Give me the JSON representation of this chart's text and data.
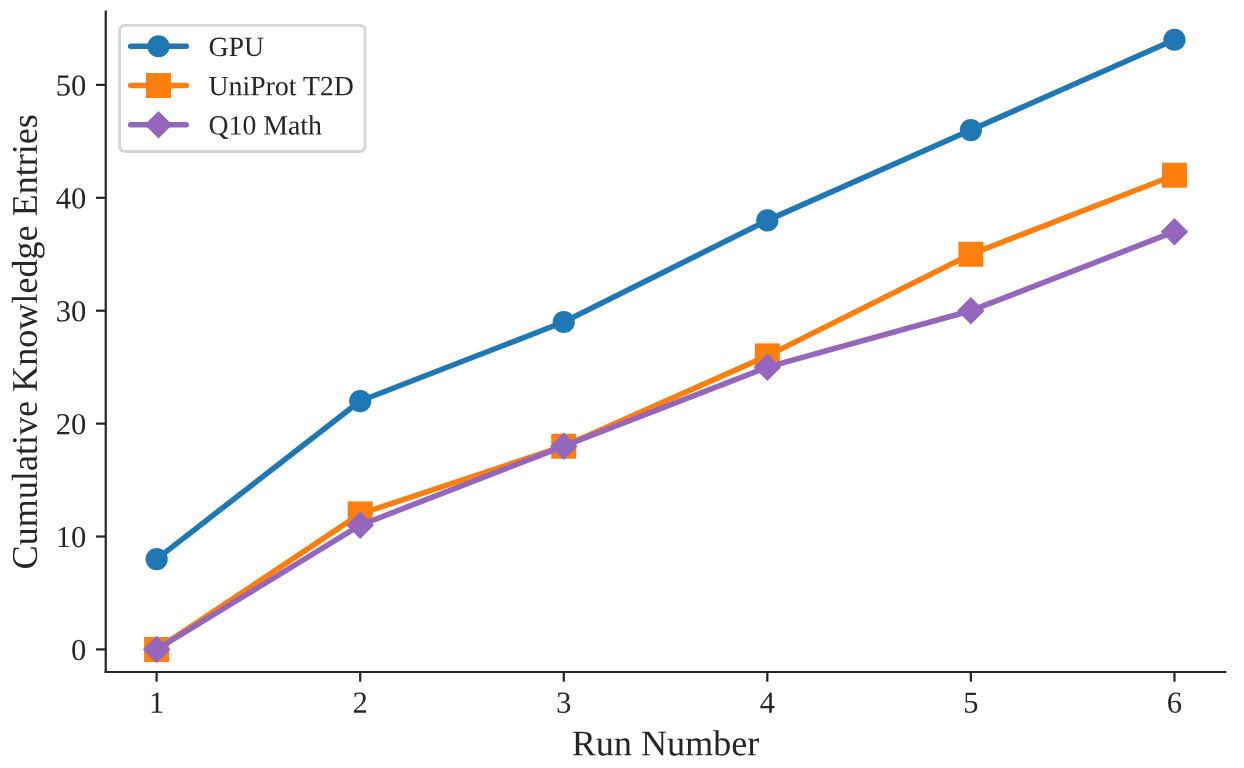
{
  "chart_data": {
    "type": "line",
    "xlabel": "Run Number",
    "ylabel": "Cumulative Knowledge Entries",
    "x": [
      1,
      2,
      3,
      4,
      5,
      6
    ],
    "series": [
      {
        "name": "GPU",
        "color": "#1f77b4",
        "marker": "circle",
        "values": [
          8,
          22,
          29,
          38,
          46,
          54
        ]
      },
      {
        "name": "UniProt T2D",
        "color": "#ff7f0e",
        "marker": "square",
        "values": [
          0,
          12,
          18,
          26,
          35,
          42
        ]
      },
      {
        "name": "Q10 Math",
        "color": "#9467bd",
        "marker": "diamond",
        "values": [
          0,
          11,
          18,
          25,
          30,
          37
        ]
      }
    ],
    "xlim": [
      0.75,
      6.25
    ],
    "xticks": [
      1,
      2,
      3,
      4,
      5,
      6
    ],
    "ylim": [
      -2,
      56.5
    ],
    "yticks": [
      0,
      10,
      20,
      30,
      40,
      50
    ],
    "grid": false,
    "legend": "top left",
    "line_style": "solid"
  }
}
